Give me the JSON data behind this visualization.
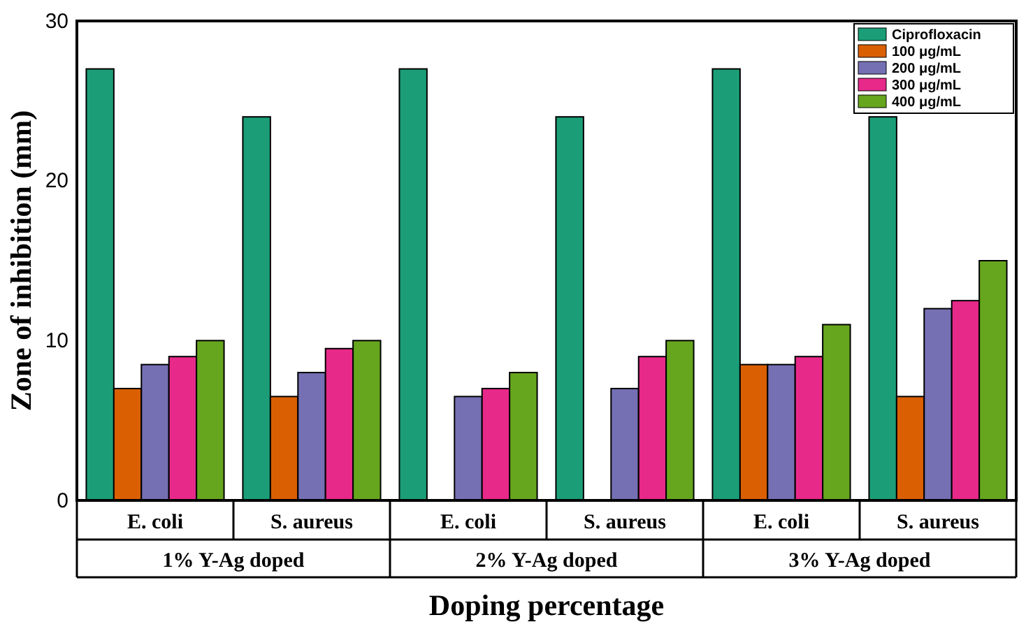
{
  "chart_data": {
    "type": "bar",
    "xlabel": "Doping percentage",
    "ylabel": "Zone of inhibition (mm)",
    "categories": [
      "E. coli",
      "S. aureus",
      "E. coli",
      "S. aureus",
      "E. coli",
      "S. aureus"
    ],
    "annotations": [
      "1% Y-Ag doped",
      "2% Y-Ag doped",
      "3% Y-Ag doped"
    ],
    "series": [
      {
        "name": "Ciprofloxacin",
        "color": "#1b9e77",
        "values": [
          27,
          24,
          27,
          24,
          27,
          24
        ]
      },
      {
        "name": "100 μg/mL",
        "color": "#d95f02",
        "values": [
          7,
          6.5,
          null,
          null,
          8.5,
          6.5
        ]
      },
      {
        "name": "200 μg/mL",
        "color": "#7570b3",
        "values": [
          8.5,
          8,
          6.5,
          7,
          8.5,
          12
        ]
      },
      {
        "name": "300 μg/mL",
        "color": "#e7298a",
        "values": [
          9,
          9.5,
          7,
          9,
          9,
          12.5
        ]
      },
      {
        "name": "400 μg/mL",
        "color": "#66a61e",
        "values": [
          10,
          10,
          8,
          10,
          11,
          15
        ]
      }
    ],
    "ylim": [
      0,
      30
    ],
    "yticks": [
      0,
      10,
      20,
      30
    ],
    "grid": false,
    "legend": "top right"
  }
}
